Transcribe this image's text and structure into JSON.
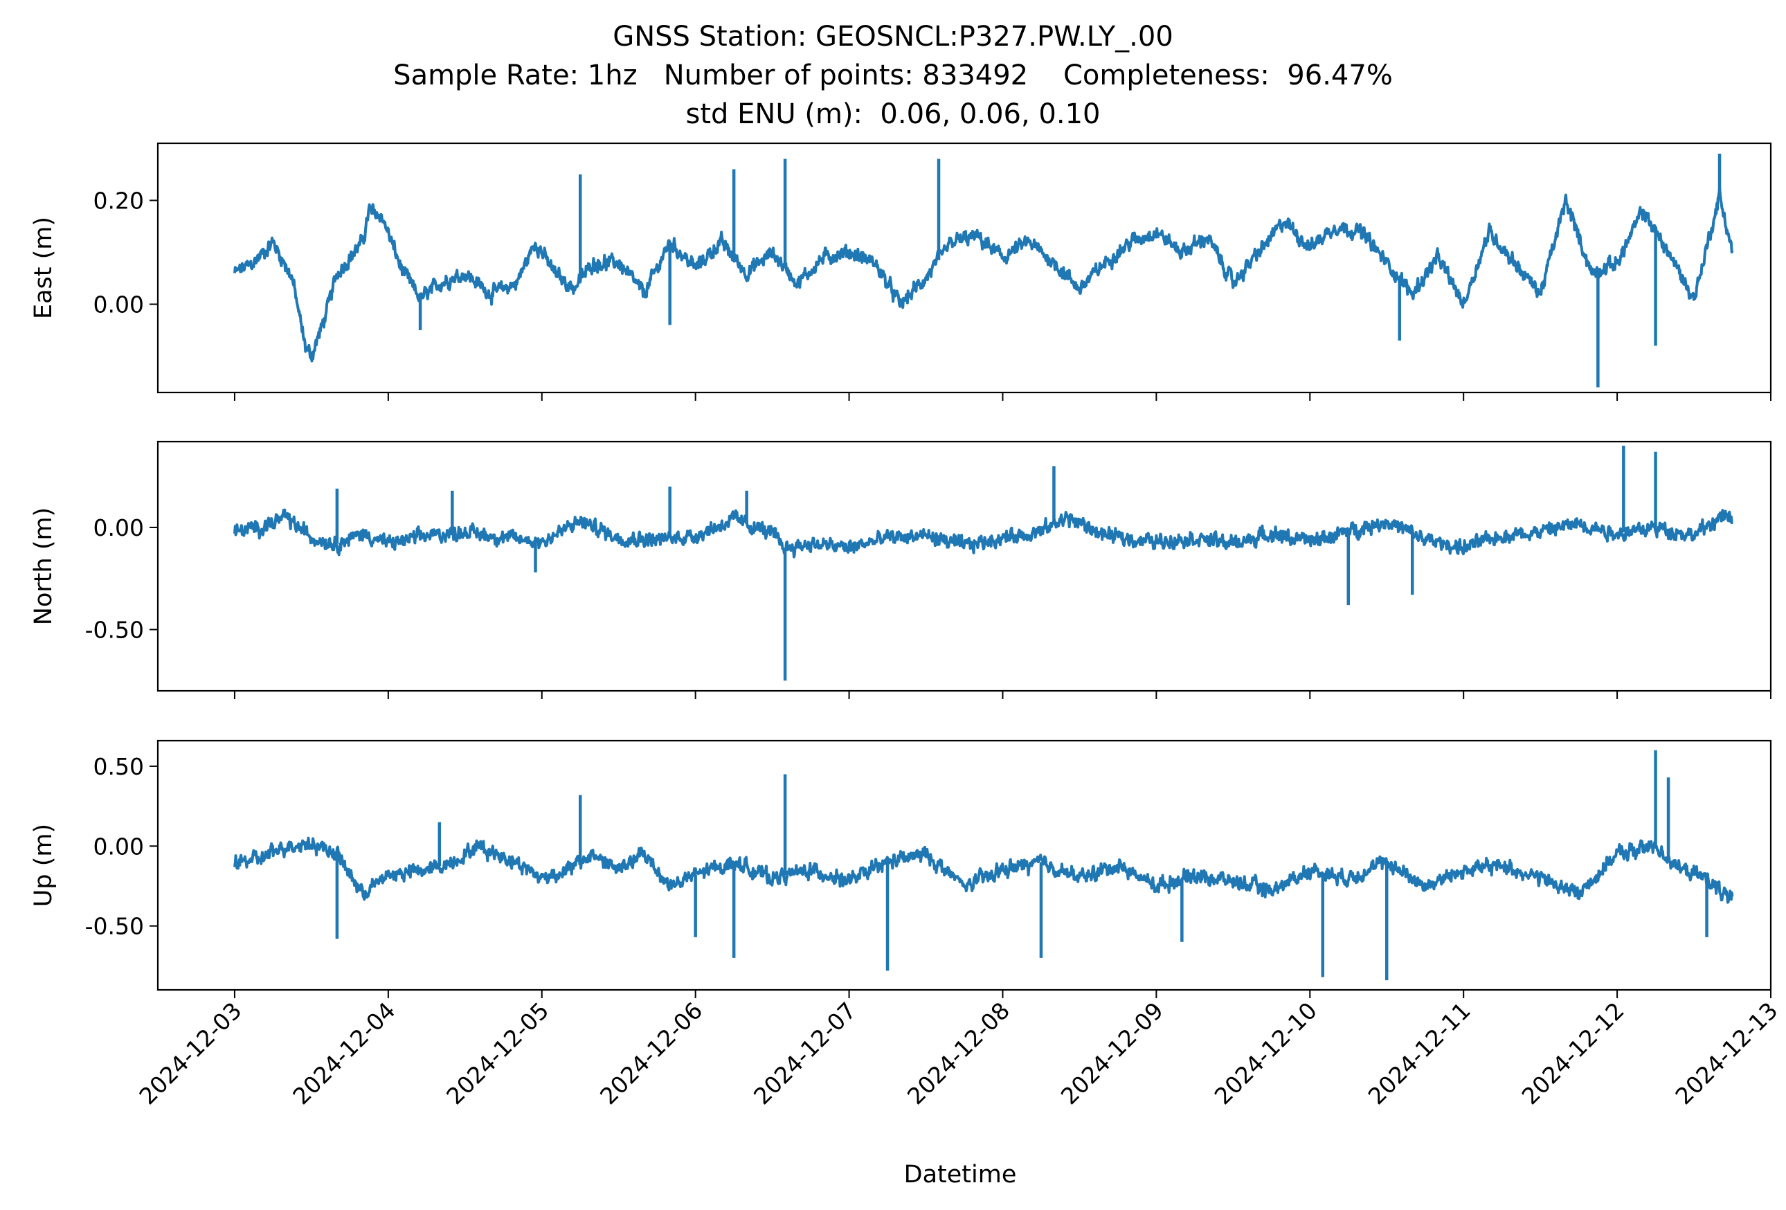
{
  "chart_data": {
    "type": "line",
    "title_lines": [
      "GNSS Station: GEOSNCL:P327.PW.LY_.00",
      "Sample Rate: 1hz   Number of points: 833492    Completeness:  96.47%",
      "std ENU (m):  0.06, 0.06, 0.10"
    ],
    "xlabel": "Datetime",
    "x_range": [
      "2024-12-02T12:00",
      "2024-12-13T00:00"
    ],
    "x_data_range": [
      "2024-12-03T00:00",
      "2024-12-12T18:00"
    ],
    "x_ticks": [
      "2024-12-03",
      "2024-12-04",
      "2024-12-05",
      "2024-12-06",
      "2024-12-07",
      "2024-12-08",
      "2024-12-09",
      "2024-12-10",
      "2024-12-11",
      "2024-12-12",
      "2024-12-13"
    ],
    "line_color": "#1f77b4",
    "grid": false,
    "legend": "none",
    "panels": [
      {
        "ylabel": "East (m)",
        "ylim": [
          -0.17,
          0.31
        ],
        "y_ticks": [
          0.0,
          0.2
        ],
        "y_tick_labels": [
          "0.00",
          "0.20"
        ],
        "baseline": [
          [
            "2024-12-03T00:00",
            0.06
          ],
          [
            "2024-12-03T03:00",
            0.08
          ],
          [
            "2024-12-03T06:00",
            0.12
          ],
          [
            "2024-12-03T09:00",
            0.05
          ],
          [
            "2024-12-03T11:00",
            -0.08
          ],
          [
            "2024-12-03T12:00",
            -0.1
          ],
          [
            "2024-12-03T14:00",
            -0.03
          ],
          [
            "2024-12-03T16:00",
            0.06
          ],
          [
            "2024-12-03T20:00",
            0.12
          ],
          [
            "2024-12-03T21:00",
            0.18
          ],
          [
            "2024-12-03T23:00",
            0.17
          ],
          [
            "2024-12-04T02:00",
            0.07
          ],
          [
            "2024-12-04T05:00",
            0.01
          ],
          [
            "2024-12-04T08:00",
            0.04
          ],
          [
            "2024-12-04T12:00",
            0.06
          ],
          [
            "2024-12-04T16:00",
            0.02
          ],
          [
            "2024-12-04T20:00",
            0.04
          ],
          [
            "2024-12-04T23:00",
            0.12
          ],
          [
            "2024-12-05T02:00",
            0.06
          ],
          [
            "2024-12-05T05:00",
            0.03
          ],
          [
            "2024-12-05T08:00",
            0.08
          ],
          [
            "2024-12-05T12:00",
            0.08
          ],
          [
            "2024-12-05T16:00",
            0.02
          ],
          [
            "2024-12-05T20:00",
            0.12
          ],
          [
            "2024-12-06T00:00",
            0.07
          ],
          [
            "2024-12-06T04:00",
            0.12
          ],
          [
            "2024-12-06T08:00",
            0.06
          ],
          [
            "2024-12-06T12:00",
            0.1
          ],
          [
            "2024-12-06T16:00",
            0.04
          ],
          [
            "2024-12-06T20:00",
            0.09
          ],
          [
            "2024-12-07T00:00",
            0.1
          ],
          [
            "2024-12-07T04:00",
            0.08
          ],
          [
            "2024-12-07T08:00",
            0.0
          ],
          [
            "2024-12-07T12:00",
            0.05
          ],
          [
            "2024-12-07T16:00",
            0.12
          ],
          [
            "2024-12-07T20:00",
            0.13
          ],
          [
            "2024-12-08T00:00",
            0.09
          ],
          [
            "2024-12-08T04:00",
            0.12
          ],
          [
            "2024-12-08T08:00",
            0.08
          ],
          [
            "2024-12-08T12:00",
            0.03
          ],
          [
            "2024-12-08T16:00",
            0.08
          ],
          [
            "2024-12-08T20:00",
            0.12
          ],
          [
            "2024-12-09T00:00",
            0.14
          ],
          [
            "2024-12-09T04:00",
            0.1
          ],
          [
            "2024-12-09T08:00",
            0.13
          ],
          [
            "2024-12-09T12:00",
            0.04
          ],
          [
            "2024-12-09T16:00",
            0.1
          ],
          [
            "2024-12-09T20:00",
            0.16
          ],
          [
            "2024-12-10T00:00",
            0.11
          ],
          [
            "2024-12-10T04:00",
            0.15
          ],
          [
            "2024-12-10T08:00",
            0.14
          ],
          [
            "2024-12-10T12:00",
            0.08
          ],
          [
            "2024-12-10T16:00",
            0.02
          ],
          [
            "2024-12-10T20:00",
            0.09
          ],
          [
            "2024-12-11T00:00",
            0.0
          ],
          [
            "2024-12-11T04:00",
            0.14
          ],
          [
            "2024-12-11T08:00",
            0.08
          ],
          [
            "2024-12-11T12:00",
            0.02
          ],
          [
            "2024-12-11T16:00",
            0.2
          ],
          [
            "2024-12-11T20:00",
            0.06
          ],
          [
            "2024-12-12T00:00",
            0.08
          ],
          [
            "2024-12-12T04:00",
            0.18
          ],
          [
            "2024-12-12T08:00",
            0.1
          ],
          [
            "2024-12-12T12:00",
            0.01
          ],
          [
            "2024-12-12T16:00",
            0.21
          ],
          [
            "2024-12-12T18:00",
            0.1
          ]
        ],
        "spikes": [
          [
            "2024-12-05T06:00",
            0.25
          ],
          [
            "2024-12-06T06:00",
            0.26
          ],
          [
            "2024-12-06T14:00",
            0.28
          ],
          [
            "2024-12-07T14:00",
            0.28
          ],
          [
            "2024-12-10T14:00",
            -0.07
          ],
          [
            "2024-12-11T21:00",
            -0.16
          ],
          [
            "2024-12-12T06:00",
            -0.08
          ],
          [
            "2024-12-12T16:00",
            0.29
          ],
          [
            "2024-12-05T20:00",
            -0.04
          ],
          [
            "2024-12-04T05:00",
            -0.05
          ]
        ]
      },
      {
        "ylabel": "North (m)",
        "ylim": [
          -0.8,
          0.42
        ],
        "y_ticks": [
          -0.5,
          0.0
        ],
        "y_tick_labels": [
          "-0.50",
          "0.00"
        ],
        "baseline": [
          [
            "2024-12-03T00:00",
            -0.02
          ],
          [
            "2024-12-03T04:00",
            0.0
          ],
          [
            "2024-12-03T08:00",
            0.05
          ],
          [
            "2024-12-03T12:00",
            -0.05
          ],
          [
            "2024-12-03T16:00",
            -0.08
          ],
          [
            "2024-12-03T20:00",
            -0.03
          ],
          [
            "2024-12-04T00:00",
            -0.08
          ],
          [
            "2024-12-04T06:00",
            -0.04
          ],
          [
            "2024-12-04T12:00",
            -0.02
          ],
          [
            "2024-12-04T18:00",
            -0.05
          ],
          [
            "2024-12-05T00:00",
            -0.07
          ],
          [
            "2024-12-05T06:00",
            0.03
          ],
          [
            "2024-12-05T12:00",
            -0.05
          ],
          [
            "2024-12-05T18:00",
            -0.06
          ],
          [
            "2024-12-06T00:00",
            -0.04
          ],
          [
            "2024-12-06T06:00",
            0.04
          ],
          [
            "2024-12-06T12:00",
            -0.03
          ],
          [
            "2024-12-06T14:00",
            -0.1
          ],
          [
            "2024-12-06T18:00",
            -0.08
          ],
          [
            "2024-12-07T00:00",
            -0.1
          ],
          [
            "2024-12-07T06:00",
            -0.05
          ],
          [
            "2024-12-07T12:00",
            -0.04
          ],
          [
            "2024-12-07T18:00",
            -0.09
          ],
          [
            "2024-12-08T00:00",
            -0.05
          ],
          [
            "2024-12-08T06:00",
            -0.02
          ],
          [
            "2024-12-08T10:00",
            0.05
          ],
          [
            "2024-12-08T16:00",
            -0.04
          ],
          [
            "2024-12-09T00:00",
            -0.07
          ],
          [
            "2024-12-09T06:00",
            -0.05
          ],
          [
            "2024-12-09T12:00",
            -0.08
          ],
          [
            "2024-12-09T18:00",
            -0.03
          ],
          [
            "2024-12-10T00:00",
            -0.07
          ],
          [
            "2024-12-10T06:00",
            -0.02
          ],
          [
            "2024-12-10T12:00",
            0.03
          ],
          [
            "2024-12-10T18:00",
            -0.06
          ],
          [
            "2024-12-11T00:00",
            -0.1
          ],
          [
            "2024-12-11T06:00",
            -0.04
          ],
          [
            "2024-12-11T12:00",
            -0.02
          ],
          [
            "2024-12-11T18:00",
            0.02
          ],
          [
            "2024-12-12T00:00",
            -0.03
          ],
          [
            "2024-12-12T06:00",
            0.0
          ],
          [
            "2024-12-12T12:00",
            -0.04
          ],
          [
            "2024-12-12T16:00",
            0.05
          ],
          [
            "2024-12-12T18:00",
            0.04
          ]
        ],
        "spikes": [
          [
            "2024-12-03T16:00",
            0.19
          ],
          [
            "2024-12-04T10:00",
            0.18
          ],
          [
            "2024-12-05T20:00",
            0.2
          ],
          [
            "2024-12-06T14:00",
            -0.75
          ],
          [
            "2024-12-08T08:00",
            0.3
          ],
          [
            "2024-12-10T06:00",
            -0.38
          ],
          [
            "2024-12-10T16:00",
            -0.33
          ],
          [
            "2024-12-12T01:00",
            0.4
          ],
          [
            "2024-12-12T06:00",
            0.37
          ],
          [
            "2024-12-06T08:00",
            0.18
          ],
          [
            "2024-12-04T23:00",
            -0.22
          ]
        ]
      },
      {
        "ylabel": "Up (m)",
        "ylim": [
          -0.9,
          0.66
        ],
        "y_ticks": [
          -0.5,
          0.0,
          0.5
        ],
        "y_tick_labels": [
          "-0.50",
          "0.00",
          "0.50"
        ],
        "baseline": [
          [
            "2024-12-03T00:00",
            -0.1
          ],
          [
            "2024-12-03T04:00",
            -0.08
          ],
          [
            "2024-12-03T08:00",
            0.0
          ],
          [
            "2024-12-03T12:00",
            0.02
          ],
          [
            "2024-12-03T16:00",
            -0.05
          ],
          [
            "2024-12-03T20:00",
            -0.3
          ],
          [
            "2024-12-04T00:00",
            -0.18
          ],
          [
            "2024-12-04T06:00",
            -0.15
          ],
          [
            "2024-12-04T10:00",
            -0.1
          ],
          [
            "2024-12-04T14:00",
            0.0
          ],
          [
            "2024-12-04T20:00",
            -0.1
          ],
          [
            "2024-12-05T00:00",
            -0.2
          ],
          [
            "2024-12-05T04:00",
            -0.15
          ],
          [
            "2024-12-05T08:00",
            -0.05
          ],
          [
            "2024-12-05T12:00",
            -0.15
          ],
          [
            "2024-12-05T16:00",
            -0.05
          ],
          [
            "2024-12-05T20:00",
            -0.25
          ],
          [
            "2024-12-06T00:00",
            -0.18
          ],
          [
            "2024-12-06T06:00",
            -0.1
          ],
          [
            "2024-12-06T12:00",
            -0.2
          ],
          [
            "2024-12-06T18:00",
            -0.15
          ],
          [
            "2024-12-07T00:00",
            -0.22
          ],
          [
            "2024-12-07T06:00",
            -0.1
          ],
          [
            "2024-12-07T12:00",
            -0.05
          ],
          [
            "2024-12-07T18:00",
            -0.25
          ],
          [
            "2024-12-08T00:00",
            -0.15
          ],
          [
            "2024-12-08T06:00",
            -0.1
          ],
          [
            "2024-12-08T12:00",
            -0.2
          ],
          [
            "2024-12-08T18:00",
            -0.12
          ],
          [
            "2024-12-09T00:00",
            -0.25
          ],
          [
            "2024-12-09T06:00",
            -0.18
          ],
          [
            "2024-12-09T12:00",
            -0.22
          ],
          [
            "2024-12-09T18:00",
            -0.28
          ],
          [
            "2024-12-10T00:00",
            -0.15
          ],
          [
            "2024-12-10T06:00",
            -0.2
          ],
          [
            "2024-12-10T12:00",
            -0.1
          ],
          [
            "2024-12-10T18:00",
            -0.25
          ],
          [
            "2024-12-11T00:00",
            -0.15
          ],
          [
            "2024-12-11T06:00",
            -0.12
          ],
          [
            "2024-12-11T12:00",
            -0.2
          ],
          [
            "2024-12-11T18:00",
            -0.3
          ],
          [
            "2024-12-12T00:00",
            -0.05
          ],
          [
            "2024-12-12T06:00",
            0.0
          ],
          [
            "2024-12-12T10:00",
            -0.15
          ],
          [
            "2024-12-12T14:00",
            -0.2
          ],
          [
            "2024-12-12T18:00",
            -0.35
          ]
        ],
        "spikes": [
          [
            "2024-12-03T16:00",
            -0.58
          ],
          [
            "2024-12-05T06:00",
            0.32
          ],
          [
            "2024-12-06T00:00",
            -0.57
          ],
          [
            "2024-12-06T06:00",
            -0.7
          ],
          [
            "2024-12-06T14:00",
            0.45
          ],
          [
            "2024-12-07T06:00",
            -0.78
          ],
          [
            "2024-12-08T06:00",
            -0.7
          ],
          [
            "2024-12-10T02:00",
            -0.82
          ],
          [
            "2024-12-10T12:00",
            -0.84
          ],
          [
            "2024-12-12T06:00",
            0.6
          ],
          [
            "2024-12-12T08:00",
            0.43
          ],
          [
            "2024-12-12T14:00",
            -0.57
          ],
          [
            "2024-12-04T08:00",
            0.15
          ],
          [
            "2024-12-09T04:00",
            -0.6
          ]
        ]
      }
    ]
  }
}
